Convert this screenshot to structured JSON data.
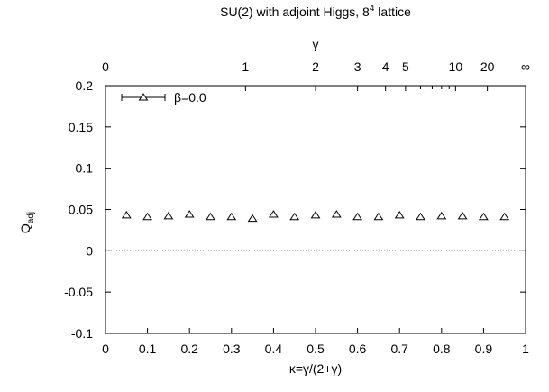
{
  "chart_data": {
    "type": "scatter",
    "title_main": "SU(2) with adjoint Higgs, 8",
    "title_sup": "4",
    "title_rest": " lattice",
    "xlabel": "κ=γ/(2+γ)",
    "ylabel_main": "Q",
    "ylabel_sub": "adj",
    "top_axis_label": "γ",
    "xlim": [
      0,
      1
    ],
    "ylim": [
      -0.1,
      0.2
    ],
    "x_ticks": [
      "0",
      "0.1",
      "0.2",
      "0.3",
      "0.4",
      "0.5",
      "0.6",
      "0.7",
      "0.8",
      "0.9",
      "1"
    ],
    "y_ticks": [
      "-0.1",
      "-0.05",
      "0",
      "0.05",
      "0.1",
      "0.15",
      "0.2"
    ],
    "top_ticks": [
      {
        "gamma": 0,
        "label": "0"
      },
      {
        "gamma": 1,
        "label": "1"
      },
      {
        "gamma": 2,
        "label": "2"
      },
      {
        "gamma": 3,
        "label": "3"
      },
      {
        "gamma": 4,
        "label": "4"
      },
      {
        "gamma": 5,
        "label": "5"
      },
      {
        "gamma": 10,
        "label": "10"
      },
      {
        "gamma": 20,
        "label": "20"
      },
      {
        "gamma": "inf",
        "label": "∞"
      }
    ],
    "top_minor_gammas": [
      6,
      7,
      8,
      9
    ],
    "legend": "β=0.0",
    "legend_position": "top-left",
    "series": [
      {
        "name": "β=0.0",
        "marker": "triangle",
        "x": [
          0.05,
          0.1,
          0.15,
          0.2,
          0.25,
          0.3,
          0.35,
          0.4,
          0.45,
          0.5,
          0.55,
          0.6,
          0.65,
          0.7,
          0.75,
          0.8,
          0.85,
          0.9,
          0.95
        ],
        "y": [
          0.043,
          0.041,
          0.042,
          0.044,
          0.041,
          0.041,
          0.039,
          0.044,
          0.041,
          0.043,
          0.044,
          0.041,
          0.041,
          0.043,
          0.041,
          0.042,
          0.042,
          0.041,
          0.041
        ]
      }
    ]
  }
}
